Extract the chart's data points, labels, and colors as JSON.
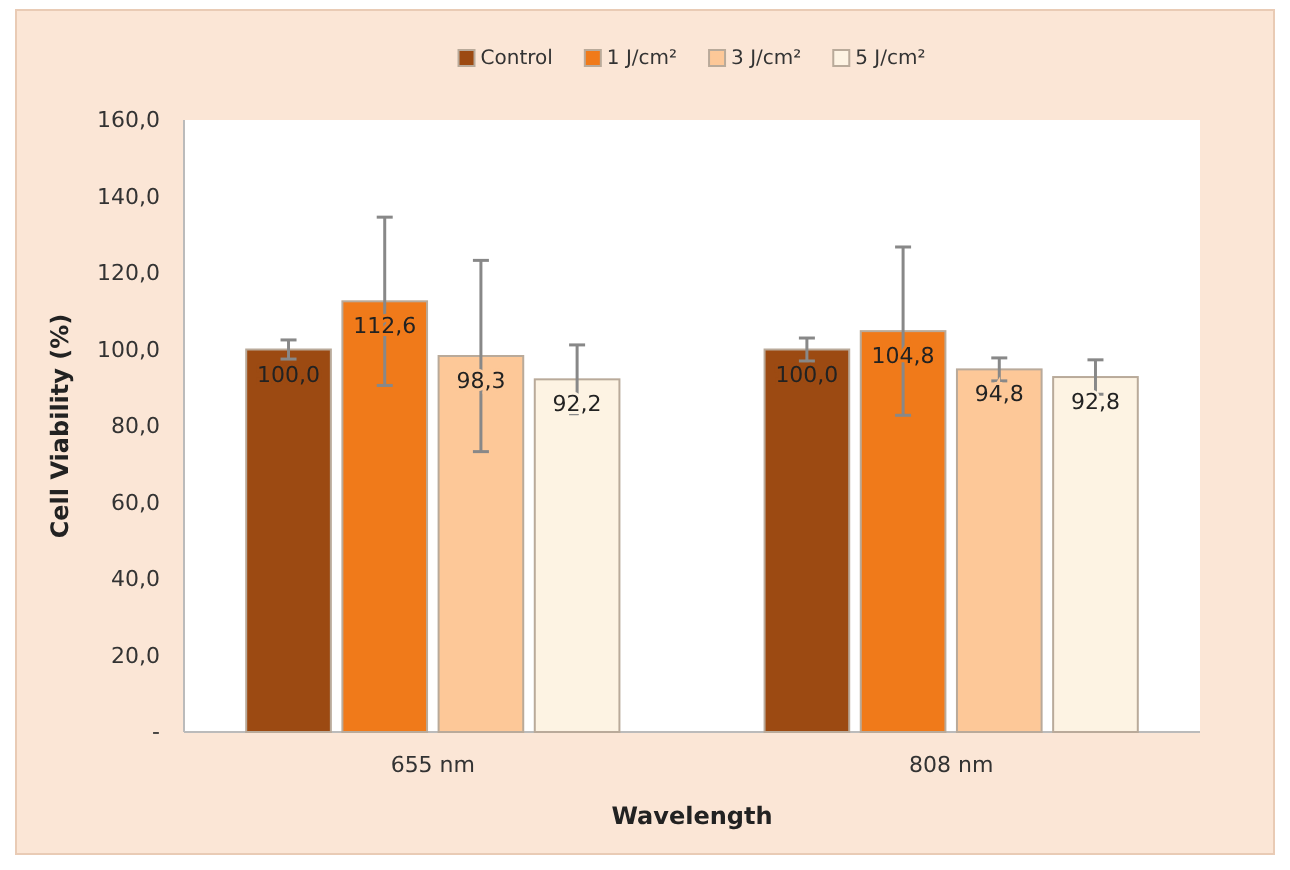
{
  "chart_data": {
    "type": "bar",
    "xlabel": "Wavelength",
    "ylabel": "Cell Viability (%)",
    "categories": [
      "655 nm",
      "808 nm"
    ],
    "series": [
      {
        "name": "Control",
        "color": "#9c4a12",
        "values": [
          100.0,
          100.0
        ],
        "errors": [
          2.5,
          3
        ],
        "value_labels": [
          "100,0",
          "100,0"
        ]
      },
      {
        "name": "1 J/cm²",
        "color": "#f07a1a",
        "values": [
          112.6,
          104.8
        ],
        "errors": [
          22,
          22
        ],
        "value_labels": [
          "112,6",
          "104,8"
        ]
      },
      {
        "name": "3 J/cm²",
        "color": "#fdc898",
        "values": [
          98.3,
          94.8
        ],
        "errors": [
          25,
          3
        ],
        "value_labels": [
          "98,3",
          "94,8"
        ]
      },
      {
        "name": "5 J/cm²",
        "color": "#fdf3e3",
        "values": [
          92.2,
          92.8
        ],
        "errors": [
          9,
          4.5
        ],
        "value_labels": [
          "92,2",
          "92,8"
        ]
      }
    ],
    "ylim": [
      0,
      160
    ],
    "yticks": [
      {
        "value": 0,
        "label": "-"
      },
      {
        "value": 20,
        "label": "20,0"
      },
      {
        "value": 40,
        "label": "40,0"
      },
      {
        "value": 60,
        "label": "60,0"
      },
      {
        "value": 80,
        "label": "80,0"
      },
      {
        "value": 100,
        "label": "100,0"
      },
      {
        "value": 120,
        "label": "120,0"
      },
      {
        "value": 140,
        "label": "140,0"
      },
      {
        "value": 160,
        "label": "160,0"
      }
    ],
    "grid": false,
    "legend": "top"
  }
}
